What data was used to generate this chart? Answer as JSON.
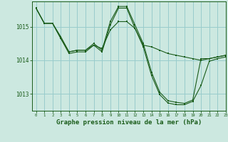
{
  "background_color": "#cce8e0",
  "grid_color": "#99cccc",
  "line_color": "#1a5c1a",
  "marker_color": "#1a5c1a",
  "xlabel": "Graphe pression niveau de la mer (hPa)",
  "xlabel_fontsize": 6.5,
  "ylim": [
    1012.5,
    1015.75
  ],
  "xlim": [
    -0.5,
    23
  ],
  "yticks": [
    1013,
    1014,
    1015
  ],
  "xticks": [
    0,
    1,
    2,
    3,
    4,
    5,
    6,
    7,
    8,
    9,
    10,
    11,
    12,
    13,
    14,
    15,
    16,
    17,
    18,
    19,
    20,
    21,
    22,
    23
  ],
  "series": [
    [
      1015.55,
      1015.1,
      1015.1,
      1014.7,
      1014.25,
      1014.3,
      1014.3,
      1014.45,
      1014.35,
      1014.9,
      1015.15,
      1015.15,
      1014.95,
      1014.45,
      1014.4,
      1014.3,
      1014.2,
      1014.15,
      1014.1,
      1014.05,
      1014.0,
      1014.05,
      1014.1,
      1014.15
    ],
    [
      1015.55,
      1015.1,
      1015.1,
      1014.65,
      1014.25,
      1014.3,
      1014.3,
      1014.5,
      1014.3,
      1015.15,
      1015.6,
      1015.6,
      1015.05,
      1014.5,
      1013.65,
      1013.05,
      1012.8,
      1012.75,
      1012.72,
      1012.82,
      1014.05,
      1014.05,
      1014.1,
      1014.15
    ],
    [
      1015.55,
      1015.1,
      1015.1,
      1014.65,
      1014.2,
      1014.25,
      1014.25,
      1014.45,
      1014.25,
      1015.05,
      1015.55,
      1015.55,
      1014.95,
      1014.4,
      1013.55,
      1012.98,
      1012.73,
      1012.68,
      1012.68,
      1012.78,
      1013.25,
      1013.97,
      1014.05,
      1014.1
    ]
  ]
}
